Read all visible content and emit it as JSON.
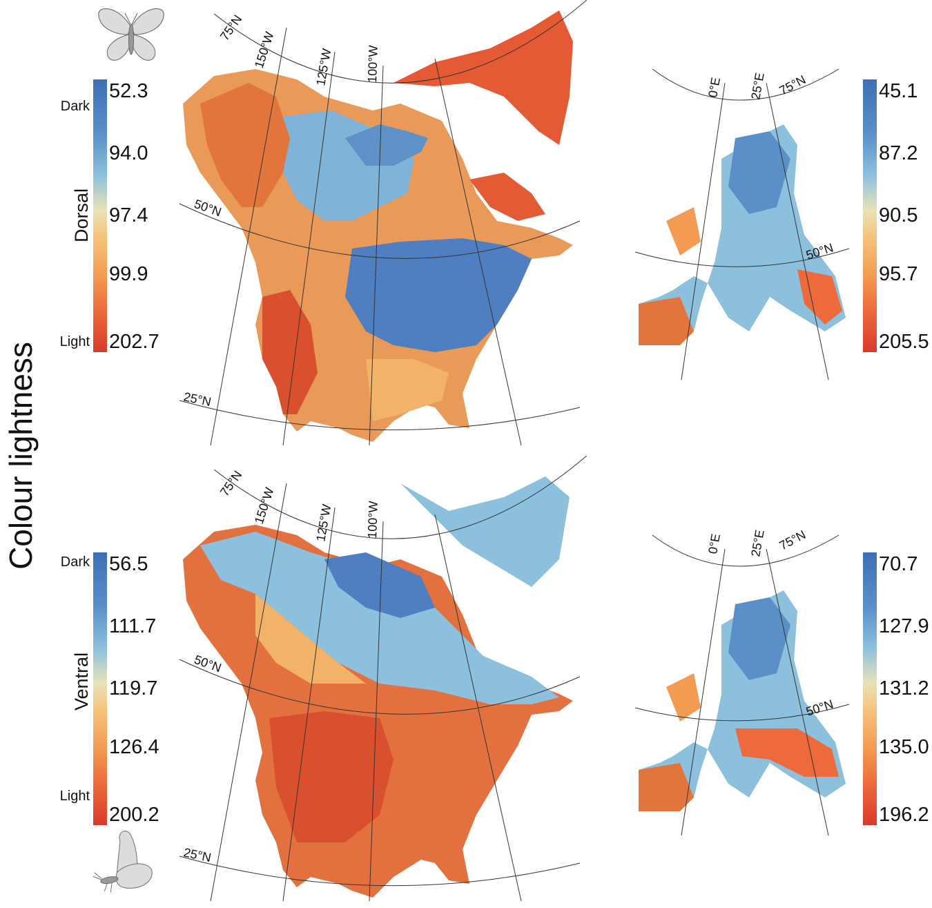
{
  "figure": {
    "title": "Colour lightness",
    "colors": {
      "dark": "#3d6fb6",
      "mid_blue": "#8cc0dd",
      "neutral": "#e7e2b8",
      "mid_orange": "#f6b96b",
      "light": "#d83a2a"
    }
  },
  "panels": [
    {
      "id": "dorsal",
      "label": "Dorsal",
      "butterfly_icon": "butterfly-open-wings-icon",
      "colorbar_left": {
        "end_labels": [
          "Dark",
          "Light"
        ],
        "tick_labels": [
          "52.3",
          "94.0",
          "97.4",
          "99.9",
          "202.7"
        ]
      },
      "colorbar_right": {
        "tick_labels": [
          "45.1",
          "87.2",
          "90.5",
          "95.7",
          "205.5"
        ]
      },
      "north_america_map": {
        "graticule_labels": [
          "75°N",
          "150°W",
          "125°W",
          "100°W",
          "50°N",
          "25°N"
        ]
      },
      "europe_map": {
        "graticule_labels": [
          "0°E",
          "25°E",
          "75°N",
          "50°N"
        ]
      }
    },
    {
      "id": "ventral",
      "label": "Ventral",
      "butterfly_icon": "butterfly-closed-wings-icon",
      "colorbar_left": {
        "end_labels": [
          "Dark",
          "Light"
        ],
        "tick_labels": [
          "56.5",
          "111.7",
          "119.7",
          "126.4",
          "200.2"
        ]
      },
      "colorbar_right": {
        "tick_labels": [
          "70.7",
          "127.9",
          "131.2",
          "135.0",
          "196.2"
        ]
      },
      "north_america_map": {
        "graticule_labels": [
          "75°N",
          "150°W",
          "125°W",
          "100°W",
          "50°N",
          "25°N"
        ]
      },
      "europe_map": {
        "graticule_labels": [
          "0°E",
          "25°E",
          "75°N",
          "50°N"
        ]
      }
    }
  ]
}
